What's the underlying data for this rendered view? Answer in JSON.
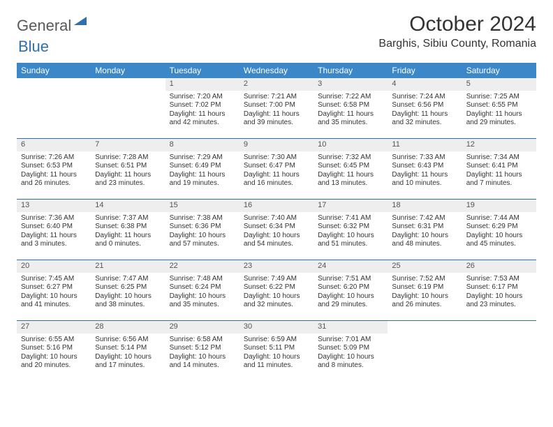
{
  "brand": {
    "part1": "General",
    "part2": "Blue"
  },
  "title": "October 2024",
  "location": "Barghis, Sibiu County, Romania",
  "colors": {
    "header_bg": "#3b87c8",
    "divider": "#2f6fb0",
    "daynum_bg": "#eeeeee",
    "text": "#333333"
  },
  "day_names": [
    "Sunday",
    "Monday",
    "Tuesday",
    "Wednesday",
    "Thursday",
    "Friday",
    "Saturday"
  ],
  "weeks": [
    [
      null,
      null,
      {
        "n": "1",
        "sr": "7:20 AM",
        "ss": "7:02 PM",
        "dl": "11 hours and 42 minutes."
      },
      {
        "n": "2",
        "sr": "7:21 AM",
        "ss": "7:00 PM",
        "dl": "11 hours and 39 minutes."
      },
      {
        "n": "3",
        "sr": "7:22 AM",
        "ss": "6:58 PM",
        "dl": "11 hours and 35 minutes."
      },
      {
        "n": "4",
        "sr": "7:24 AM",
        "ss": "6:56 PM",
        "dl": "11 hours and 32 minutes."
      },
      {
        "n": "5",
        "sr": "7:25 AM",
        "ss": "6:55 PM",
        "dl": "11 hours and 29 minutes."
      }
    ],
    [
      {
        "n": "6",
        "sr": "7:26 AM",
        "ss": "6:53 PM",
        "dl": "11 hours and 26 minutes."
      },
      {
        "n": "7",
        "sr": "7:28 AM",
        "ss": "6:51 PM",
        "dl": "11 hours and 23 minutes."
      },
      {
        "n": "8",
        "sr": "7:29 AM",
        "ss": "6:49 PM",
        "dl": "11 hours and 19 minutes."
      },
      {
        "n": "9",
        "sr": "7:30 AM",
        "ss": "6:47 PM",
        "dl": "11 hours and 16 minutes."
      },
      {
        "n": "10",
        "sr": "7:32 AM",
        "ss": "6:45 PM",
        "dl": "11 hours and 13 minutes."
      },
      {
        "n": "11",
        "sr": "7:33 AM",
        "ss": "6:43 PM",
        "dl": "11 hours and 10 minutes."
      },
      {
        "n": "12",
        "sr": "7:34 AM",
        "ss": "6:41 PM",
        "dl": "11 hours and 7 minutes."
      }
    ],
    [
      {
        "n": "13",
        "sr": "7:36 AM",
        "ss": "6:40 PM",
        "dl": "11 hours and 3 minutes."
      },
      {
        "n": "14",
        "sr": "7:37 AM",
        "ss": "6:38 PM",
        "dl": "11 hours and 0 minutes."
      },
      {
        "n": "15",
        "sr": "7:38 AM",
        "ss": "6:36 PM",
        "dl": "10 hours and 57 minutes."
      },
      {
        "n": "16",
        "sr": "7:40 AM",
        "ss": "6:34 PM",
        "dl": "10 hours and 54 minutes."
      },
      {
        "n": "17",
        "sr": "7:41 AM",
        "ss": "6:32 PM",
        "dl": "10 hours and 51 minutes."
      },
      {
        "n": "18",
        "sr": "7:42 AM",
        "ss": "6:31 PM",
        "dl": "10 hours and 48 minutes."
      },
      {
        "n": "19",
        "sr": "7:44 AM",
        "ss": "6:29 PM",
        "dl": "10 hours and 45 minutes."
      }
    ],
    [
      {
        "n": "20",
        "sr": "7:45 AM",
        "ss": "6:27 PM",
        "dl": "10 hours and 41 minutes."
      },
      {
        "n": "21",
        "sr": "7:47 AM",
        "ss": "6:25 PM",
        "dl": "10 hours and 38 minutes."
      },
      {
        "n": "22",
        "sr": "7:48 AM",
        "ss": "6:24 PM",
        "dl": "10 hours and 35 minutes."
      },
      {
        "n": "23",
        "sr": "7:49 AM",
        "ss": "6:22 PM",
        "dl": "10 hours and 32 minutes."
      },
      {
        "n": "24",
        "sr": "7:51 AM",
        "ss": "6:20 PM",
        "dl": "10 hours and 29 minutes."
      },
      {
        "n": "25",
        "sr": "7:52 AM",
        "ss": "6:19 PM",
        "dl": "10 hours and 26 minutes."
      },
      {
        "n": "26",
        "sr": "7:53 AM",
        "ss": "6:17 PM",
        "dl": "10 hours and 23 minutes."
      }
    ],
    [
      {
        "n": "27",
        "sr": "6:55 AM",
        "ss": "5:16 PM",
        "dl": "10 hours and 20 minutes."
      },
      {
        "n": "28",
        "sr": "6:56 AM",
        "ss": "5:14 PM",
        "dl": "10 hours and 17 minutes."
      },
      {
        "n": "29",
        "sr": "6:58 AM",
        "ss": "5:12 PM",
        "dl": "10 hours and 14 minutes."
      },
      {
        "n": "30",
        "sr": "6:59 AM",
        "ss": "5:11 PM",
        "dl": "10 hours and 11 minutes."
      },
      {
        "n": "31",
        "sr": "7:01 AM",
        "ss": "5:09 PM",
        "dl": "10 hours and 8 minutes."
      },
      null,
      null
    ]
  ],
  "labels": {
    "sunrise": "Sunrise:",
    "sunset": "Sunset:",
    "daylight": "Daylight:"
  }
}
